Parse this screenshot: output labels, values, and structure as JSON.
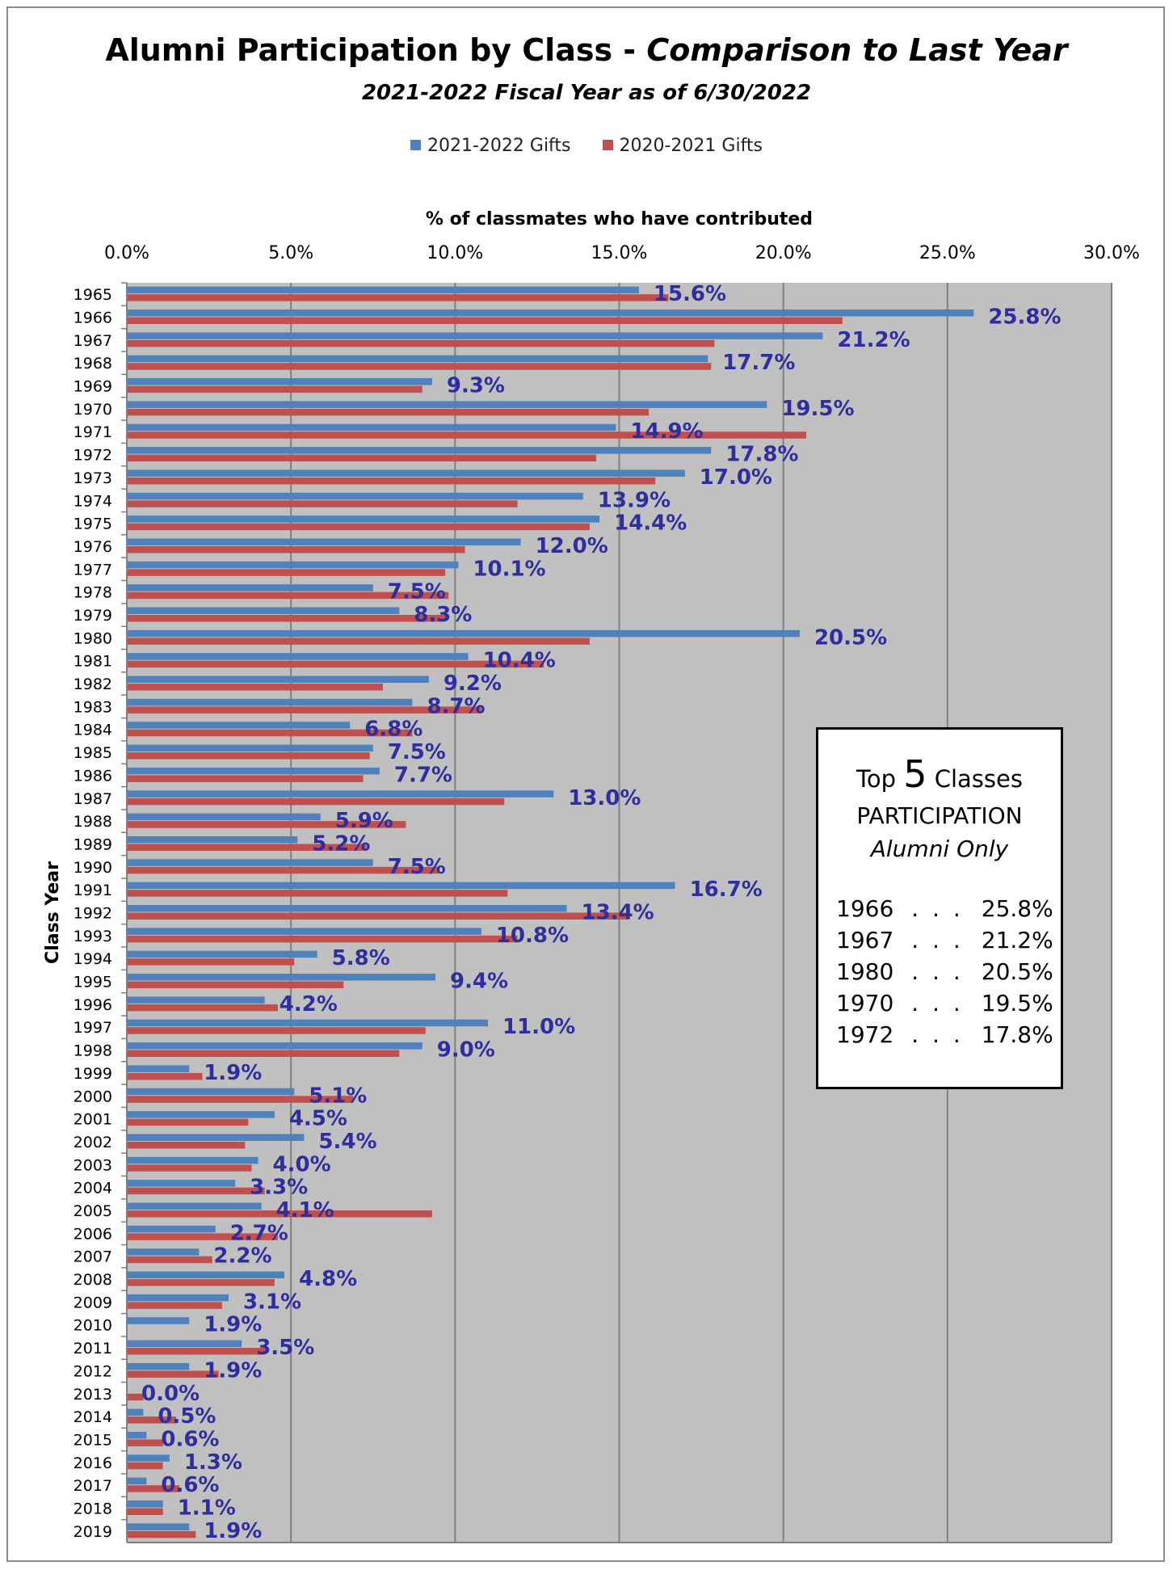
{
  "chart_data": {
    "type": "bar",
    "orientation": "horizontal",
    "title": "Alumni Participation by Class -",
    "title_italic": "Comparison to Last Year",
    "subtitle": "2021-2022 Fiscal Year as of 6/30/2022",
    "xlabel": "% of classmates who have contributed",
    "ylabel": "Class Year",
    "xlim": [
      0,
      30
    ],
    "x_ticks": [
      "0.0%",
      "5.0%",
      "10.0%",
      "15.0%",
      "20.0%",
      "25.0%",
      "30.0%"
    ],
    "grid": true,
    "legend_position": "top",
    "categories": [
      "1965",
      "1966",
      "1967",
      "1968",
      "1969",
      "1970",
      "1971",
      "1972",
      "1973",
      "1974",
      "1975",
      "1976",
      "1977",
      "1978",
      "1979",
      "1980",
      "1981",
      "1982",
      "1983",
      "1984",
      "1985",
      "1986",
      "1987",
      "1988",
      "1989",
      "1990",
      "1991",
      "1992",
      "1993",
      "1994",
      "1995",
      "1996",
      "1997",
      "1998",
      "1999",
      "2000",
      "2001",
      "2002",
      "2003",
      "2004",
      "2005",
      "2006",
      "2007",
      "2008",
      "2009",
      "2010",
      "2011",
      "2012",
      "2013",
      "2014",
      "2015",
      "2016",
      "2017",
      "2018",
      "2019"
    ],
    "series": [
      {
        "name": "2021-2022 Gifts",
        "color": "#4f81bd",
        "values": [
          15.6,
          25.8,
          21.2,
          17.7,
          9.3,
          19.5,
          14.9,
          17.8,
          17.0,
          13.9,
          14.4,
          12.0,
          10.1,
          7.5,
          8.3,
          20.5,
          10.4,
          9.2,
          8.7,
          6.8,
          7.5,
          7.7,
          13.0,
          5.9,
          5.2,
          7.5,
          16.7,
          13.4,
          10.8,
          5.8,
          9.4,
          4.2,
          11.0,
          9.0,
          1.9,
          5.1,
          4.5,
          5.4,
          4.0,
          3.3,
          4.1,
          2.7,
          2.2,
          4.8,
          3.1,
          1.9,
          3.5,
          1.9,
          0.0,
          0.5,
          0.6,
          1.3,
          0.6,
          1.1,
          1.9
        ]
      },
      {
        "name": "2020-2021 Gifts",
        "color": "#c0504d",
        "values": [
          16.5,
          21.8,
          17.9,
          17.8,
          9.0,
          15.9,
          20.7,
          14.3,
          16.1,
          11.9,
          14.1,
          10.3,
          9.7,
          9.8,
          9.7,
          14.1,
          12.7,
          7.8,
          10.8,
          8.7,
          7.4,
          7.2,
          11.5,
          8.5,
          7.3,
          9.5,
          11.6,
          15.3,
          11.9,
          5.1,
          6.6,
          4.6,
          9.1,
          8.3,
          2.3,
          6.9,
          3.7,
          3.6,
          3.8,
          4.2,
          9.3,
          4.6,
          2.6,
          4.5,
          2.9,
          0.0,
          4.2,
          2.8,
          0.5,
          1.5,
          1.1,
          1.1,
          1.6,
          1.1,
          2.1
        ]
      }
    ],
    "data_label_series": 0,
    "data_labels": [
      "15.6%",
      "25.8%",
      "21.2%",
      "17.7%",
      "9.3%",
      "19.5%",
      "14.9%",
      "17.8%",
      "17.0%",
      "13.9%",
      "14.4%",
      "12.0%",
      "10.1%",
      "7.5%",
      "8.3%",
      "20.5%",
      "10.4%",
      "9.2%",
      "8.7%",
      "6.8%",
      "7.5%",
      "7.7%",
      "13.0%",
      "5.9%",
      "5.2%",
      "7.5%",
      "16.7%",
      "13.4%",
      "10.8%",
      "5.8%",
      "9.4%",
      "4.2%",
      "11.0%",
      "9.0%",
      "1.9%",
      "5.1%",
      "4.5%",
      "5.4%",
      "4.0%",
      "3.3%",
      "4.1%",
      "2.7%",
      "2.2%",
      "4.8%",
      "3.1%",
      "1.9%",
      "3.5%",
      "1.9%",
      "0.0%",
      "0.5%",
      "0.6%",
      "1.3%",
      "0.6%",
      "1.1%",
      "1.9%"
    ],
    "colors": {
      "plot_background": "#c0c0c0",
      "gridline": "#808080",
      "data_label": "#2e2e9e"
    }
  },
  "top_box": {
    "word_top": "Top",
    "number": "5",
    "word_classes": "Classes",
    "line2": "PARTICIPATION",
    "line3": "Alumni Only",
    "rows": [
      {
        "year": "1966",
        "dots": ". . .",
        "value": "25.8%"
      },
      {
        "year": "1967",
        "dots": ". . .",
        "value": "21.2%"
      },
      {
        "year": "1980",
        "dots": ". . .",
        "value": "20.5%"
      },
      {
        "year": "1970",
        "dots": ". . .",
        "value": "19.5%"
      },
      {
        "year": "1972",
        "dots": ". . .",
        "value": "17.8%"
      }
    ]
  }
}
